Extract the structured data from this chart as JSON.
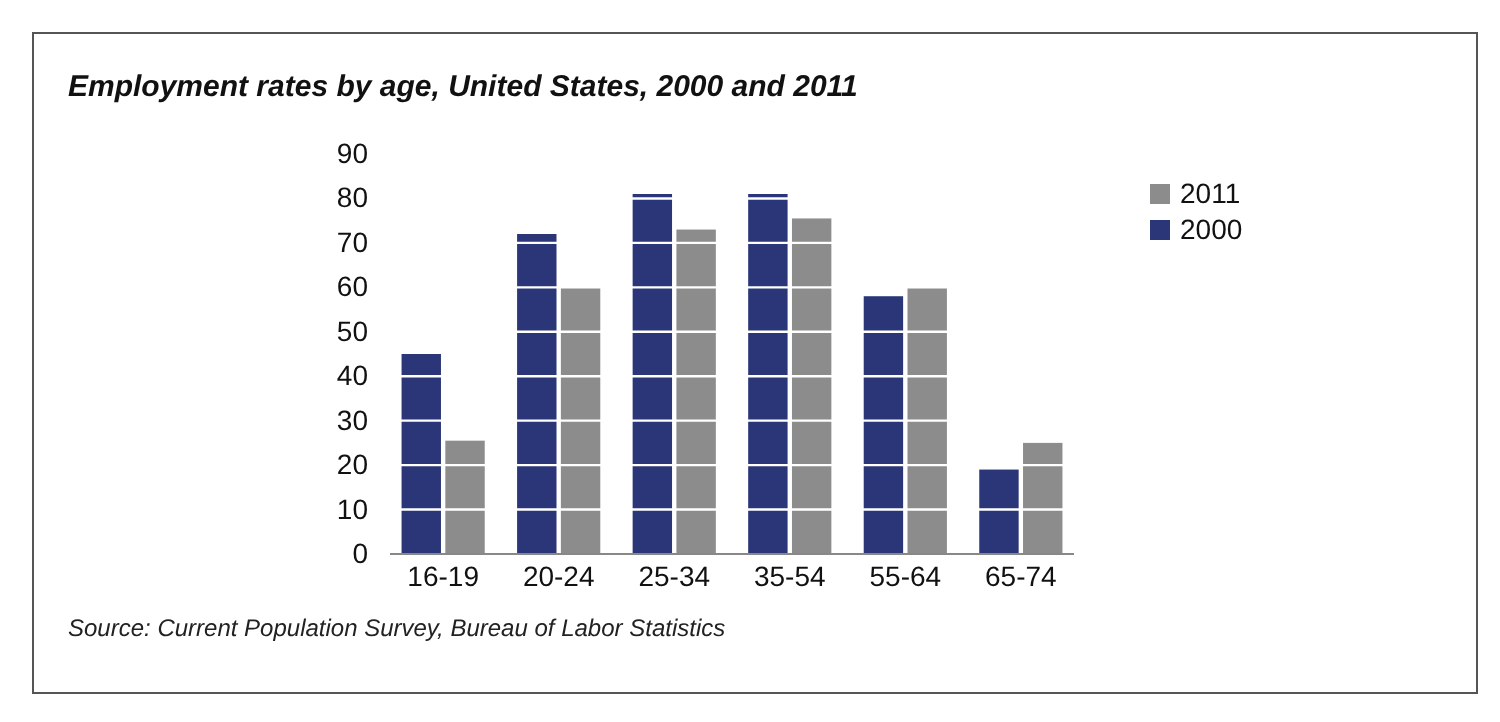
{
  "chart_data": {
    "type": "bar",
    "title": "Employment rates by age, United States, 2000 and 2011",
    "categories": [
      "16-19",
      "20-24",
      "25-34",
      "35-54",
      "55-64",
      "65-74"
    ],
    "series": [
      {
        "name": "2000",
        "color": "#2a3677",
        "values": [
          45,
          72,
          81,
          81,
          58,
          19
        ]
      },
      {
        "name": "2011",
        "color": "#8c8c8c",
        "values": [
          25.5,
          60,
          73,
          75.5,
          60,
          25
        ]
      }
    ],
    "ylim": [
      0,
      90
    ],
    "yticks": [
      0,
      10,
      20,
      30,
      40,
      50,
      60,
      70,
      80,
      90
    ],
    "grid": "y",
    "legend": "top right",
    "annotations": [
      "Source: Current Population Survey, Bureau of Labor Statistics"
    ]
  }
}
